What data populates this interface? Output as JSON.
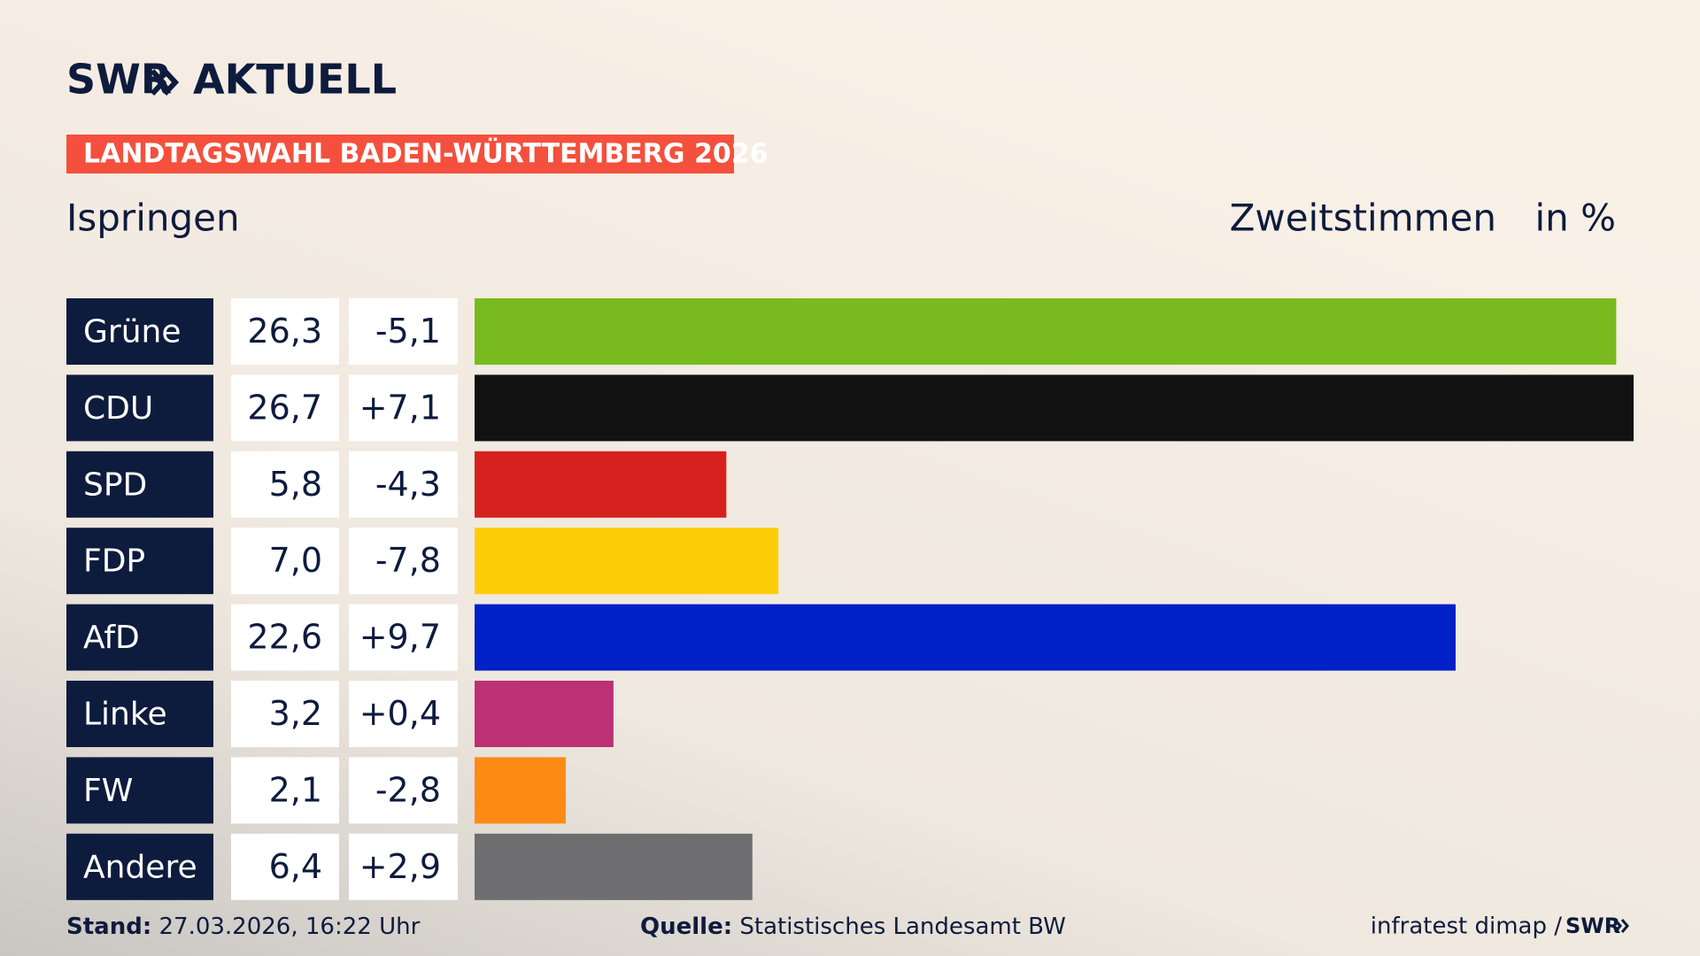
{
  "chart_data": {
    "type": "bar",
    "brand": "SWR",
    "brand_product": "AKTUELL",
    "title": "LANDTAGSWAHL BADEN-WÜRTTEMBERG 2026",
    "subtitle": "Ispringen",
    "measure": "Zweitstimmen",
    "unit": "in %",
    "categories": [
      "Grüne",
      "CDU",
      "SPD",
      "FDP",
      "AfD",
      "Linke",
      "FW",
      "Andere"
    ],
    "values": [
      26.3,
      26.7,
      5.8,
      7.0,
      22.6,
      3.2,
      2.1,
      6.4
    ],
    "value_labels": [
      "26,3",
      "26,7",
      "5,8",
      "7,0",
      "22,6",
      "3,2",
      "2,1",
      "6,4"
    ],
    "changes": [
      -5.1,
      7.1,
      -4.3,
      -7.8,
      9.7,
      0.4,
      -2.8,
      2.9
    ],
    "change_labels": [
      "-5,1",
      "+7,1",
      "-4,3",
      "-7,8",
      "+9,7",
      "+0,4",
      "-2,8",
      "+2,9"
    ],
    "colors": [
      "#79bb1e",
      "#111111",
      "#d7211e",
      "#fdcd0a",
      "#0020c8",
      "#bd3075",
      "#fc8b16",
      "#6e6e70"
    ],
    "stand_label": "Stand:",
    "stand": "27.03.2026, 16:22 Uhr",
    "source_label": "Quelle:",
    "source": "Statistisches Landesamt BW",
    "credit": "infratest dimap /",
    "credit_brand": "SWR"
  }
}
